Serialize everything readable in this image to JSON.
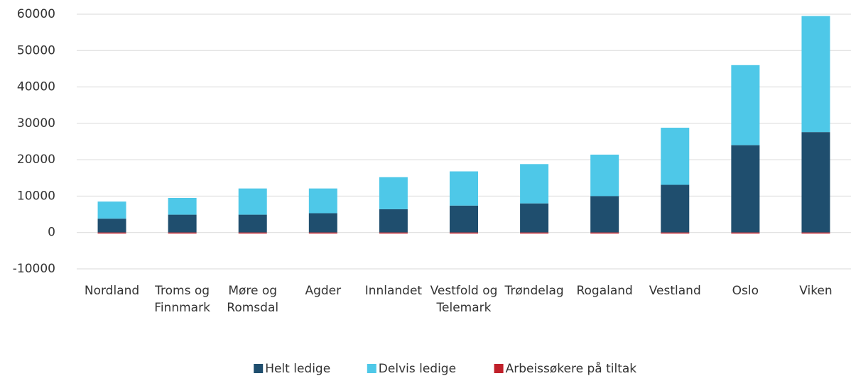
{
  "chart_data": {
    "type": "stacked-bar",
    "categories": [
      "Nordland",
      "Troms og Finnmark",
      "Møre og Romsdal",
      "Agder",
      "Innlandet",
      "Vestfold og Telemark",
      "Trøndelag",
      "Rogaland",
      "Vestland",
      "Oslo",
      "Viken"
    ],
    "series": [
      {
        "name": "Helt ledige",
        "color": "#1f4e6e",
        "values": [
          3800,
          4900,
          4900,
          5300,
          6400,
          7400,
          8000,
          10000,
          13100,
          24000,
          27600
        ]
      },
      {
        "name": "Delvis ledige",
        "color": "#4ec8e8",
        "values": [
          4700,
          4600,
          7200,
          6800,
          8800,
          9400,
          10800,
          11400,
          15700,
          22000,
          31900
        ]
      },
      {
        "name": "Arbeissøkere på tiltak",
        "color": "#c0202a",
        "values": [
          -300,
          -300,
          -300,
          -300,
          -300,
          -300,
          -300,
          -300,
          -300,
          -300,
          -300
        ]
      }
    ],
    "ylim": [
      -10000,
      60000
    ],
    "yticks": [
      -10000,
      0,
      10000,
      20000,
      30000,
      40000,
      50000,
      60000
    ],
    "grid": true,
    "legend": "bottom"
  }
}
